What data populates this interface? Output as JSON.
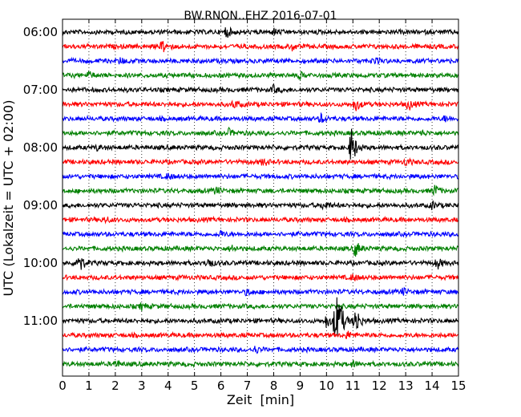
{
  "chart_data": {
    "type": "line",
    "title": "BW.RNON..EHZ 2016-07-01",
    "xlabel": "Zeit  [min]",
    "ylabel": "UTC (Lokalzeit = UTC + 02:00)",
    "xlim": [
      0,
      15
    ],
    "x_ticks": [
      "0",
      "1",
      "2",
      "3",
      "4",
      "5",
      "6",
      "7",
      "8",
      "9",
      "10",
      "11",
      "12",
      "13",
      "14",
      "15"
    ],
    "y_tick_labels": [
      "06:00",
      "07:00",
      "08:00",
      "09:00",
      "10:00",
      "11:00"
    ],
    "grid": "vertical dotted",
    "trace_colors": [
      "#000000",
      "#ff0000",
      "#0000ff",
      "#008000"
    ],
    "traces": [
      {
        "start": "06:00",
        "events": [
          {
            "t": 6.2,
            "amp": 0.5
          },
          {
            "t": 8.0,
            "amp": 0.25
          }
        ]
      },
      {
        "start": "06:15",
        "events": [
          {
            "t": 3.8,
            "amp": 0.6
          },
          {
            "t": 8.7,
            "amp": 0.3
          }
        ]
      },
      {
        "start": "06:30",
        "events": [
          {
            "t": 2.2,
            "amp": 0.25
          },
          {
            "t": 11.8,
            "amp": 0.25
          }
        ]
      },
      {
        "start": "06:45",
        "events": [
          {
            "t": 1.0,
            "amp": 0.3
          },
          {
            "t": 9.0,
            "amp": 0.25
          }
        ]
      },
      {
        "start": "07:00",
        "events": [
          {
            "t": 8.0,
            "amp": 0.3
          }
        ]
      },
      {
        "start": "07:15",
        "events": [
          {
            "t": 6.5,
            "amp": 0.35
          },
          {
            "t": 11.1,
            "amp": 0.6
          },
          {
            "t": 13.1,
            "amp": 0.5
          }
        ]
      },
      {
        "start": "07:30",
        "events": [
          {
            "t": 9.8,
            "amp": 0.4
          },
          {
            "t": 14.5,
            "amp": 0.2
          }
        ]
      },
      {
        "start": "07:45",
        "events": [
          {
            "t": 6.3,
            "amp": 0.3
          },
          {
            "t": 13.6,
            "amp": 0.2
          }
        ]
      },
      {
        "start": "08:00",
        "events": [
          {
            "t": 10.95,
            "amp": 1.8
          },
          {
            "t": 1.3,
            "amp": 0.2
          }
        ]
      },
      {
        "start": "08:15",
        "events": [
          {
            "t": 7.6,
            "amp": 0.3
          },
          {
            "t": 13.0,
            "amp": 0.3
          }
        ]
      },
      {
        "start": "08:30",
        "events": [
          {
            "t": 4.0,
            "amp": 0.25
          }
        ]
      },
      {
        "start": "08:45",
        "events": [
          {
            "t": 5.8,
            "amp": 0.3
          },
          {
            "t": 14.1,
            "amp": 0.5
          }
        ]
      },
      {
        "start": "09:00",
        "events": [
          {
            "t": 9.9,
            "amp": 0.4
          },
          {
            "t": 14.0,
            "amp": 0.3
          }
        ]
      },
      {
        "start": "09:15",
        "events": [
          {
            "t": 1.6,
            "amp": 0.25
          }
        ]
      },
      {
        "start": "09:30",
        "events": [
          {
            "t": 6.0,
            "amp": 0.25
          }
        ]
      },
      {
        "start": "09:45",
        "events": [
          {
            "t": 11.1,
            "amp": 0.7
          },
          {
            "t": 6.4,
            "amp": 0.3
          }
        ]
      },
      {
        "start": "10:00",
        "events": [
          {
            "t": 0.6,
            "amp": 1.2
          },
          {
            "t": 5.5,
            "amp": 0.5
          },
          {
            "t": 14.2,
            "amp": 0.5
          }
        ]
      },
      {
        "start": "10:15",
        "events": [
          {
            "t": 11.0,
            "amp": 0.3
          }
        ]
      },
      {
        "start": "10:30",
        "events": [
          {
            "t": 7.0,
            "amp": 0.25
          },
          {
            "t": 12.9,
            "amp": 0.25
          }
        ]
      },
      {
        "start": "10:45",
        "events": [
          {
            "t": 3.0,
            "amp": 0.25
          }
        ]
      },
      {
        "start": "11:00",
        "events": [
          {
            "t": 10.45,
            "amp": 2.6
          },
          {
            "t": 10.3,
            "amp": 1.2
          },
          {
            "t": 11.1,
            "amp": 1.4
          },
          {
            "t": 10.0,
            "amp": 0.6
          }
        ]
      },
      {
        "start": "11:15",
        "events": [
          {
            "t": 10.8,
            "amp": 0.3
          }
        ]
      },
      {
        "start": "11:30",
        "events": [
          {
            "t": 7.3,
            "amp": 0.3
          }
        ]
      },
      {
        "start": "11:45",
        "events": [
          {
            "t": 2.0,
            "amp": 0.3
          },
          {
            "t": 11.0,
            "amp": 0.25
          }
        ]
      }
    ]
  }
}
